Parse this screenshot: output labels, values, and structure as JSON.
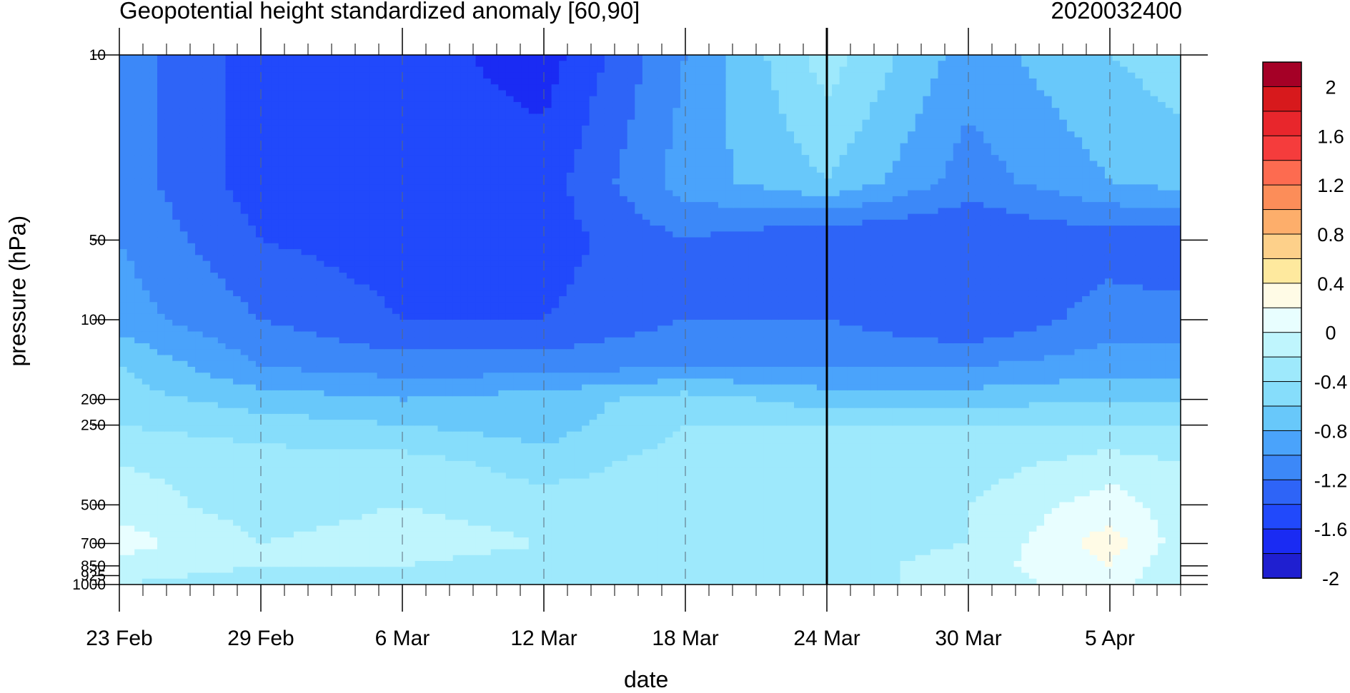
{
  "chart_data": {
    "type": "heatmap",
    "title": "Geopotential height standardized anomaly [60,90]",
    "date_stamp": "2020032400",
    "xlabel": "date",
    "ylabel": "pressure (hPa)",
    "x_ticks": [
      "23 Feb",
      "29 Feb",
      "6 Mar",
      "12 Mar",
      "18 Mar",
      "24 Mar",
      "30 Mar",
      "5 Apr"
    ],
    "y_ticks": [
      "10",
      "50",
      "100",
      "200",
      "250",
      "500",
      "700",
      "850",
      "925",
      "1000"
    ],
    "y_scale": "log",
    "ylim": [
      1000,
      10
    ],
    "xlim": [
      "23 Feb",
      "8 Apr"
    ],
    "marked_date": "24 Mar",
    "colorbar": {
      "labels": [
        "2",
        "1.6",
        "1.2",
        "0.8",
        "0.4",
        "0",
        "-0.4",
        "-0.8",
        "-1.2",
        "-1.6",
        "-2"
      ],
      "levels": [
        -2.2,
        -2.0,
        -1.8,
        -1.6,
        -1.4,
        -1.2,
        -1.0,
        -0.8,
        -0.6,
        -0.4,
        -0.2,
        0,
        0.2,
        0.4,
        0.6,
        0.8,
        1.0,
        1.2,
        1.4,
        1.6,
        1.8,
        2.0,
        2.2
      ],
      "colors_top_to_bottom": [
        "#a50026",
        "#d7191c",
        "#e8262c",
        "#f53c3c",
        "#fd6b50",
        "#fc8d59",
        "#fdae6b",
        "#fdd08a",
        "#fee99e",
        "#fffbe6",
        "#e8feff",
        "#bff5fd",
        "#9ee9fc",
        "#86ddfb",
        "#68c8fa",
        "#4aa3fb",
        "#3c88f8",
        "#2e64f7",
        "#2149fb",
        "#1a2bf3",
        "#1f1fd0"
      ]
    },
    "field_dates": [
      "23 Feb",
      "29 Feb",
      "6 Mar",
      "12 Mar",
      "18 Mar",
      "24 Mar",
      "30 Mar",
      "5 Apr",
      "8 Apr"
    ],
    "field_levels": [
      10,
      30,
      50,
      100,
      150,
      200,
      250,
      350,
      500,
      700,
      850,
      1000
    ],
    "field_values": [
      [
        -1.3,
        -1.7,
        -1.7,
        -1.9,
        -1.2,
        -0.5,
        -1.1,
        -0.8,
        -0.7
      ],
      [
        -1.3,
        -1.7,
        -1.7,
        -1.7,
        -1.1,
        -0.8,
        -1.3,
        -1.0,
        -0.9
      ],
      [
        -1.2,
        -1.6,
        -1.7,
        -1.7,
        -1.4,
        -1.6,
        -1.6,
        -1.5,
        -1.6
      ],
      [
        -1.1,
        -1.4,
        -1.6,
        -1.6,
        -1.4,
        -1.4,
        -1.6,
        -1.3,
        -1.3
      ],
      [
        -0.8,
        -1.2,
        -1.3,
        -1.3,
        -1.2,
        -1.2,
        -1.2,
        -1.1,
        -1.1
      ],
      [
        -0.7,
        -0.9,
        -1.0,
        -0.9,
        -0.7,
        -0.9,
        -0.9,
        -0.8,
        -0.8
      ],
      [
        -0.6,
        -0.7,
        -0.8,
        -0.9,
        -0.6,
        -0.6,
        -0.6,
        -0.6,
        -0.6
      ],
      [
        -0.4,
        -0.5,
        -0.5,
        -0.7,
        -0.5,
        -0.5,
        -0.5,
        -0.3,
        -0.4
      ],
      [
        -0.3,
        -0.5,
        -0.4,
        -0.5,
        -0.5,
        -0.5,
        -0.4,
        -0.1,
        -0.3
      ],
      [
        -0.1,
        -0.4,
        -0.3,
        -0.4,
        -0.5,
        -0.5,
        -0.4,
        0.1,
        -0.3
      ],
      [
        -0.3,
        -0.4,
        -0.4,
        -0.5,
        -0.5,
        -0.5,
        -0.3,
        0.0,
        -0.4
      ],
      [
        -0.4,
        -0.5,
        -0.4,
        -0.5,
        -0.5,
        -0.5,
        -0.3,
        -0.1,
        -0.4
      ]
    ]
  }
}
